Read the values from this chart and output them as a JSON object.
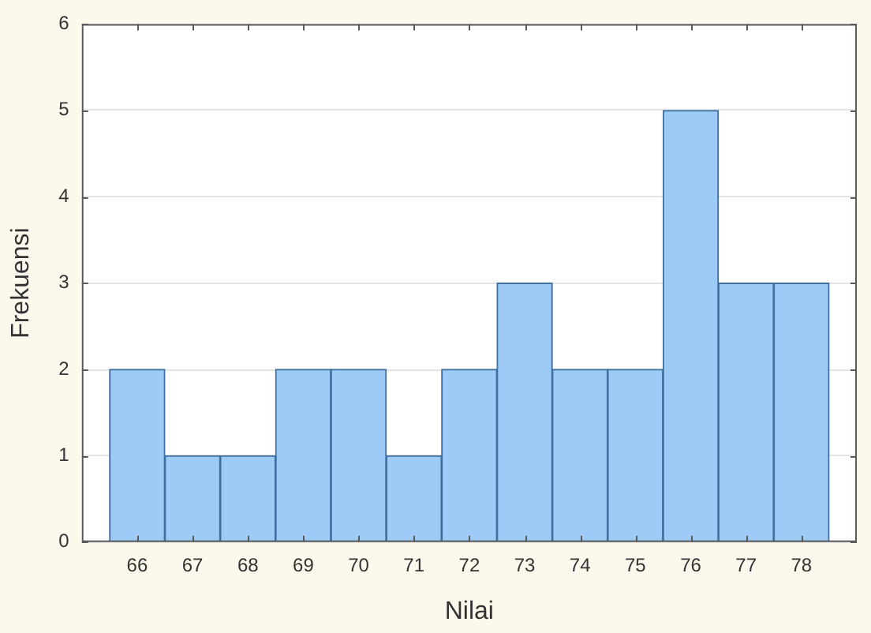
{
  "chart_data": {
    "type": "bar",
    "xlabel": "Nilai",
    "ylabel": "Frekuensi",
    "categories": [
      "66",
      "67",
      "68",
      "69",
      "70",
      "71",
      "72",
      "73",
      "74",
      "75",
      "76",
      "77",
      "78"
    ],
    "values": [
      2,
      1,
      1,
      2,
      2,
      1,
      2,
      3,
      2,
      2,
      5,
      3,
      3
    ],
    "color": "#9dcbf6",
    "ylim": [
      0,
      6
    ],
    "yticks": [
      0,
      1,
      2,
      3,
      4,
      5,
      6
    ],
    "grid": "y"
  }
}
